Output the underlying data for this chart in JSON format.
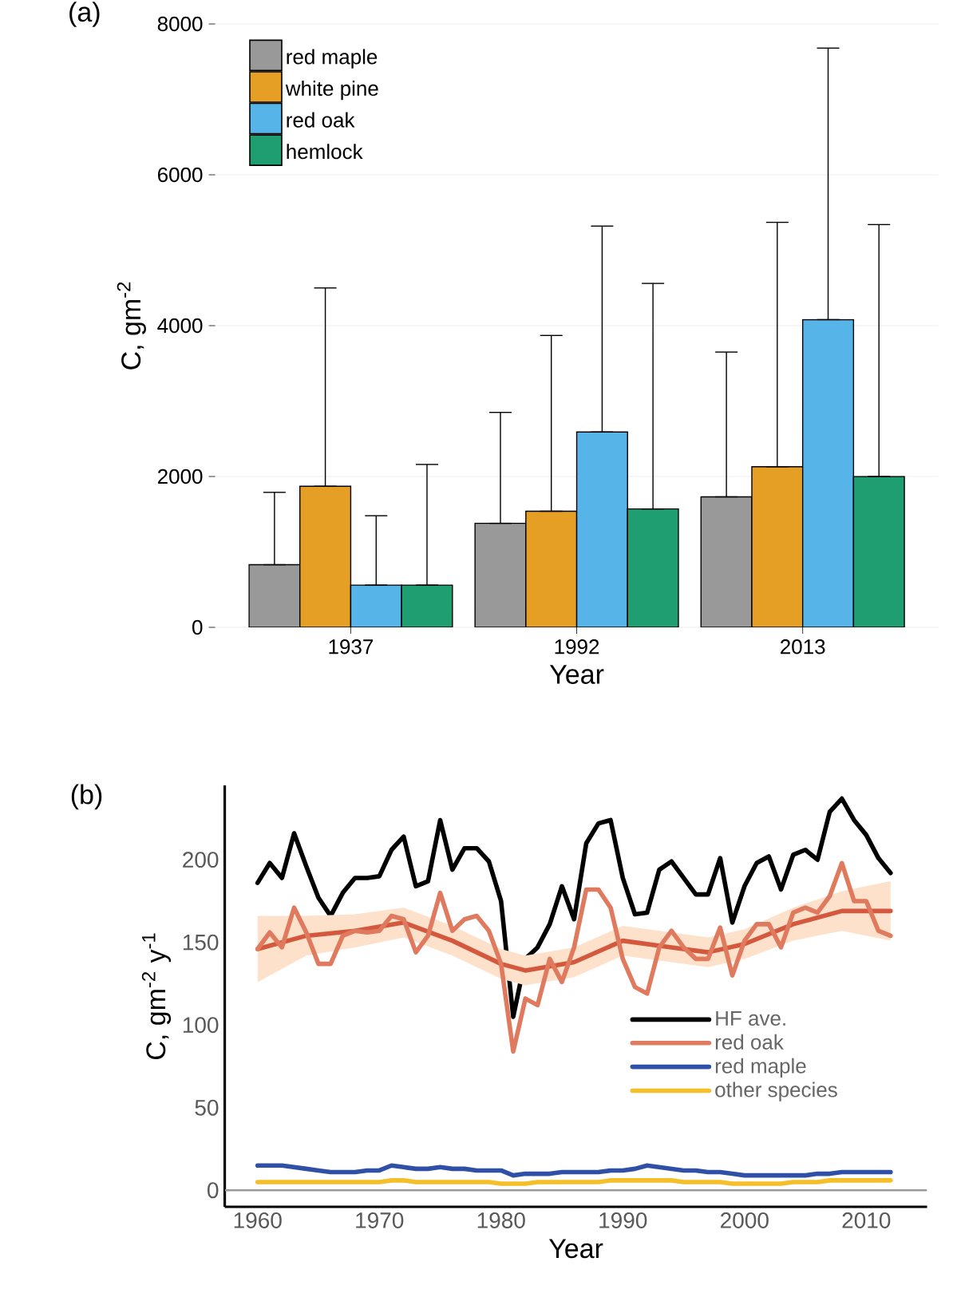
{
  "chart_data": [
    {
      "type": "bar",
      "title": "(a)",
      "xlabel": "Year",
      "ylabel": "C, gm$^{-2}$",
      "categories": [
        "1937",
        "1992",
        "2013"
      ],
      "series": [
        {
          "name": "red maple",
          "color": "#999999",
          "values": [
            830,
            1380,
            1730
          ],
          "errors": [
            [
              830,
              1790
            ],
            [
              1380,
              2850
            ],
            [
              1730,
              3650
            ]
          ]
        },
        {
          "name": "white pine",
          "color": "#e69f25",
          "values": [
            1870,
            1540,
            2130
          ],
          "errors": [
            [
              1870,
              4500
            ],
            [
              1540,
              3870
            ],
            [
              2130,
              5370
            ]
          ]
        },
        {
          "name": "red oak",
          "color": "#56b4e9",
          "values": [
            560,
            2590,
            4080
          ],
          "errors": [
            [
              560,
              1480
            ],
            [
              2590,
              5320
            ],
            [
              4080,
              7680
            ]
          ]
        },
        {
          "name": "hemlock",
          "color": "#1f9e72",
          "values": [
            560,
            1570,
            2000
          ],
          "errors": [
            [
              560,
              2160
            ],
            [
              1570,
              4560
            ],
            [
              2000,
              5340
            ]
          ]
        }
      ],
      "ylim": [
        0,
        8000
      ],
      "yticks": [
        0,
        2000,
        4000,
        6000,
        8000
      ],
      "grid": "y",
      "legend": "top left"
    },
    {
      "type": "line",
      "title": "(b)",
      "xlabel": "Year",
      "ylabel": "C, gm$^{-2}$ y$^{-1}$",
      "x": [
        1960,
        1961,
        1962,
        1963,
        1964,
        1965,
        1966,
        1967,
        1968,
        1969,
        1970,
        1971,
        1972,
        1973,
        1974,
        1975,
        1976,
        1977,
        1978,
        1979,
        1980,
        1981,
        1982,
        1983,
        1984,
        1985,
        1986,
        1987,
        1988,
        1989,
        1990,
        1991,
        1992,
        1993,
        1994,
        1995,
        1996,
        1997,
        1998,
        1999,
        2000,
        2001,
        2002,
        2003,
        2004,
        2005,
        2006,
        2007,
        2008,
        2009,
        2010,
        2011,
        2012
      ],
      "series": [
        {
          "name": "HF ave.",
          "color": "#000000",
          "values": [
            186,
            198,
            189,
            216,
            196,
            177,
            166,
            180,
            189,
            189,
            190,
            206,
            214,
            184,
            187,
            224,
            194,
            207,
            207,
            199,
            175,
            105,
            140,
            147,
            161,
            184,
            164,
            210,
            222,
            224,
            189,
            167,
            168,
            194,
            199,
            189,
            179,
            179,
            201,
            162,
            184,
            198,
            202,
            182,
            203,
            206,
            200,
            229,
            237,
            224,
            215,
            201,
            192
          ]
        },
        {
          "color": "#d4583e",
          "x": [
            1960,
            1964,
            1968,
            1972,
            1976,
            1980,
            1982,
            1986,
            1990,
            1994,
            1997,
            2000,
            2004,
            2008,
            2012
          ],
          "values": [
            146,
            154,
            157,
            162,
            151,
            137,
            133,
            138,
            151,
            147,
            144,
            149,
            161,
            169,
            169
          ],
          "lower": [
            126,
            142,
            147,
            153,
            142,
            128,
            124,
            129,
            142,
            138,
            135,
            140,
            151,
            157,
            151
          ],
          "upper": [
            166,
            166,
            167,
            171,
            160,
            146,
            142,
            147,
            160,
            156,
            153,
            158,
            171,
            181,
            187
          ]
        },
        {
          "name": "red oak",
          "color": "#e07a5f",
          "values": [
            146,
            156,
            147,
            171,
            156,
            137,
            137,
            154,
            157,
            156,
            157,
            166,
            164,
            144,
            154,
            180,
            157,
            164,
            166,
            157,
            137,
            84,
            116,
            112,
            140,
            126,
            147,
            182,
            182,
            171,
            140,
            123,
            119,
            147,
            157,
            147,
            140,
            140,
            159,
            130,
            151,
            161,
            161,
            147,
            168,
            171,
            168,
            178,
            198,
            175,
            175,
            157,
            154
          ]
        },
        {
          "name": "red maple",
          "color": "#3050a8",
          "values": [
            15,
            15,
            15,
            14,
            13,
            12,
            11,
            11,
            11,
            12,
            12,
            15,
            14,
            13,
            13,
            14,
            13,
            13,
            12,
            12,
            12,
            9,
            10,
            10,
            10,
            11,
            11,
            11,
            11,
            12,
            12,
            13,
            15,
            14,
            13,
            12,
            12,
            11,
            11,
            10,
            9,
            9,
            9,
            9,
            9,
            9,
            10,
            10,
            11,
            11,
            11,
            11,
            11
          ]
        },
        {
          "name": "other species",
          "color": "#f5bf2a",
          "values": [
            5,
            5,
            5,
            5,
            5,
            5,
            5,
            5,
            5,
            5,
            5,
            6,
            6,
            5,
            5,
            5,
            5,
            5,
            5,
            5,
            4,
            4,
            4,
            5,
            5,
            5,
            5,
            5,
            5,
            6,
            6,
            6,
            6,
            6,
            6,
            5,
            5,
            5,
            5,
            4,
            4,
            4,
            4,
            4,
            5,
            5,
            5,
            6,
            6,
            6,
            6,
            6,
            6
          ]
        }
      ],
      "xlim": [
        1957.3,
        2015
      ],
      "ylim": [
        -10,
        245
      ],
      "xticks": [
        1960,
        1970,
        1980,
        1990,
        2000,
        2010
      ],
      "yticks": [
        0,
        50,
        100,
        150,
        200
      ],
      "ref_lines": [
        {
          "axis": "y",
          "value": 0,
          "color": "#999999"
        }
      ],
      "legend": "bottom right"
    }
  ]
}
